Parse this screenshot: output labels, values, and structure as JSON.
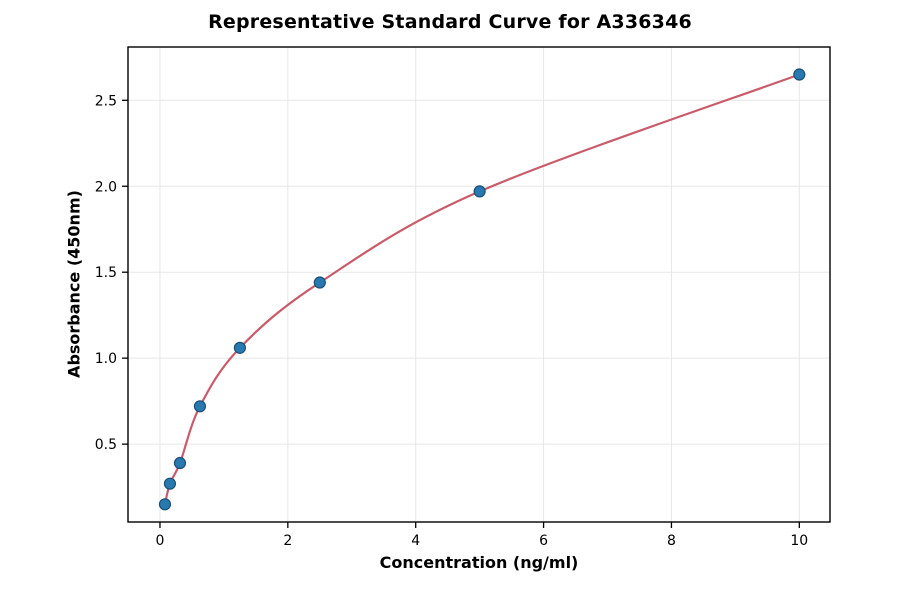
{
  "chart_data": {
    "type": "scatter",
    "title": "Representative Standard Curve for A336346",
    "xlabel": "Concentration (ng/ml)",
    "ylabel": "Absorbance (450nm)",
    "xlim": [
      -0.5,
      10.48
    ],
    "ylim": [
      0.047,
      2.81
    ],
    "grid": true,
    "grid_color": "#e7e7e7",
    "axis_color": "#000000",
    "background": "#ffffff",
    "legend_position": "none",
    "x_ticks": [
      {
        "value": 0,
        "label": "0"
      },
      {
        "value": 2,
        "label": "2"
      },
      {
        "value": 4,
        "label": "4"
      },
      {
        "value": 6,
        "label": "6"
      },
      {
        "value": 8,
        "label": "8"
      },
      {
        "value": 10,
        "label": "10"
      }
    ],
    "y_ticks": [
      {
        "value": 0.5,
        "label": "0.5"
      },
      {
        "value": 1.0,
        "label": "1.0"
      },
      {
        "value": 1.5,
        "label": "1.5"
      },
      {
        "value": 2.0,
        "label": "2.0"
      },
      {
        "value": 2.5,
        "label": "2.5"
      }
    ],
    "series": [
      {
        "name": "standard-points",
        "type": "scatter",
        "x": [
          0.078,
          0.156,
          0.313,
          0.625,
          1.25,
          2.5,
          5.0,
          10.0
        ],
        "y": [
          0.15,
          0.27,
          0.39,
          0.72,
          1.06,
          1.44,
          1.97,
          2.65
        ],
        "point_color": "#2879b0",
        "point_edge_color": "#1a4f75",
        "point_radius": 5.5
      },
      {
        "name": "fit-curve",
        "type": "line",
        "color": "#c95b6b",
        "width": 2.2,
        "fit_through": "standard-points"
      }
    ]
  }
}
